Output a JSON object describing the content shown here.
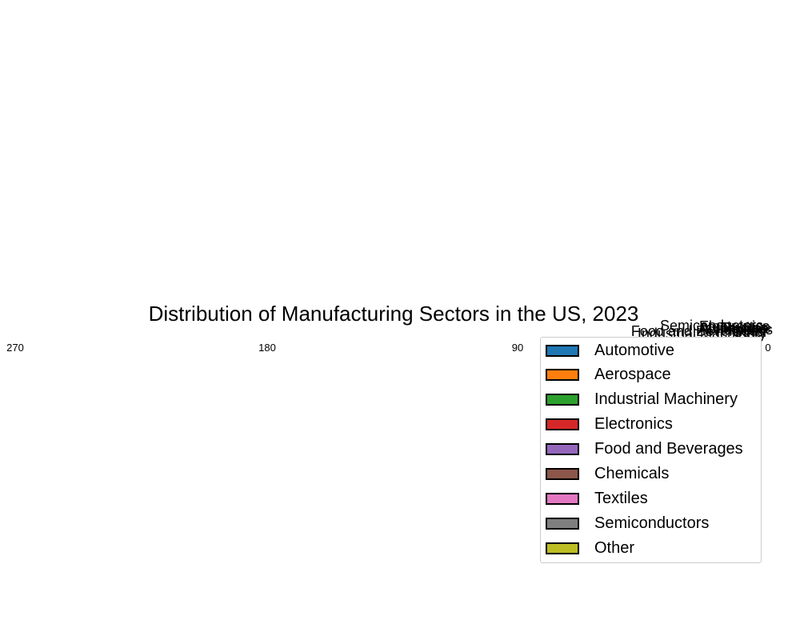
{
  "chart_data": {
    "type": "pie",
    "title": "Distribution of Manufacturing Sectors in the US, 2023",
    "categories": [
      "Automotive",
      "Aerospace",
      "Industrial Machinery",
      "Electronics",
      "Food and Beverages",
      "Chemicals",
      "Textiles",
      "Semiconductors",
      "Other"
    ],
    "colors": [
      "#1f77b4",
      "#ff7f0e",
      "#2ca02c",
      "#d62728",
      "#9467bd",
      "#8c564b",
      "#e377c2",
      "#7f7f7f",
      "#bcbd22"
    ],
    "angle_ticks": [
      "270",
      "180",
      "90",
      "0"
    ],
    "legend_position": "right"
  }
}
